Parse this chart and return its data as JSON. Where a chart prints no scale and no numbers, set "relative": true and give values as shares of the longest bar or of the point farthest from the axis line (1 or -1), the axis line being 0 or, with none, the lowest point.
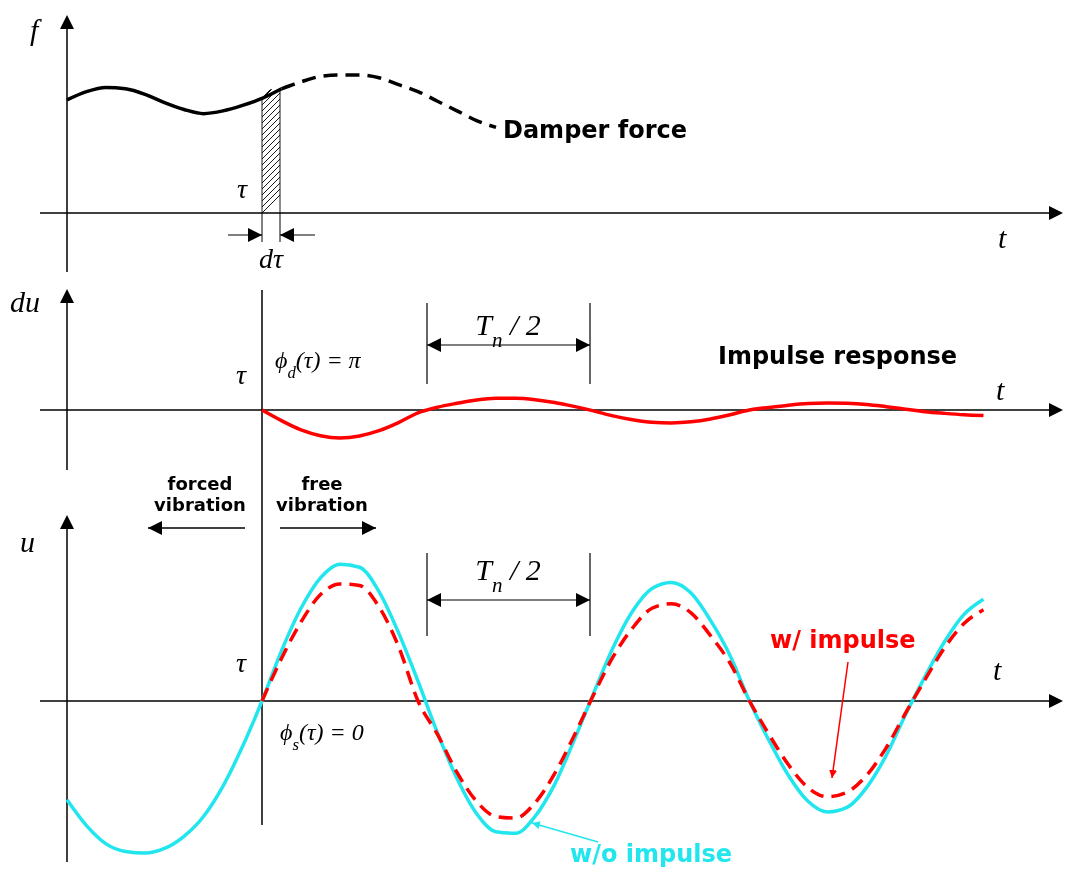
{
  "chart_data": [
    {
      "type": "line",
      "relative": true,
      "xlabel": "t",
      "ylabel": "f",
      "categories": [
        null,
        null,
        null,
        null,
        null,
        null,
        null,
        null,
        null,
        null,
        null,
        null,
        null,
        null,
        null,
        null,
        null,
        null,
        null,
        null,
        null,
        null,
        null,
        null,
        null,
        null,
        null,
        null,
        null,
        null,
        null,
        null,
        null,
        null,
        null,
        null,
        null,
        null,
        null,
        null,
        null,
        null,
        null,
        null,
        null,
        null,
        null,
        null,
        null
      ],
      "series": [
        {
          "color": "#000000",
          "line_style": "solid",
          "values": [
            0.82,
            0.88,
            0.91,
            0.9,
            0.86,
            0.8,
            0.75,
            0.72,
            0.74,
            0.78,
            0.83,
            0.9,
            null,
            null,
            null,
            null,
            null,
            null,
            null,
            null,
            null,
            null,
            null,
            null,
            null,
            null,
            null,
            null,
            null,
            null,
            null,
            null,
            null,
            null,
            null,
            null,
            null,
            null,
            null,
            null,
            null,
            null,
            null,
            null,
            null,
            null,
            null,
            null,
            null
          ]
        },
        {
          "color": "#000000",
          "line_style": "dashed",
          "values": [
            null,
            null,
            null,
            null,
            null,
            null,
            null,
            null,
            null,
            null,
            null,
            0.9,
            0.95,
            0.99,
            1,
            1,
            0.98,
            0.93,
            0.88,
            0.81,
            0.74,
            0.67,
            0.62,
            null,
            null,
            null,
            null,
            null,
            null,
            null,
            null,
            null,
            null,
            null,
            null,
            null,
            null,
            null,
            null,
            null,
            null,
            null,
            null,
            null,
            null,
            null,
            null,
            null,
            null
          ]
        }
      ],
      "annotations": [
        "Damper force",
        "τ",
        "dτ"
      ]
    },
    {
      "type": "line",
      "relative": true,
      "xlabel": "t",
      "ylabel": "du",
      "categories": [
        null,
        null,
        null,
        null,
        null,
        null,
        null,
        null,
        null,
        null,
        null,
        null,
        null,
        null,
        null,
        null,
        null,
        null,
        null,
        null,
        null,
        null,
        null,
        null,
        null,
        null,
        null,
        null,
        null,
        null,
        null,
        null,
        null,
        null,
        null,
        null,
        null,
        null,
        null,
        null,
        null,
        null,
        null,
        null,
        null,
        null,
        null,
        null,
        null
      ],
      "series": [
        {
          "color": "#ff0000",
          "line_style": "solid",
          "values": [
            null,
            null,
            null,
            null,
            null,
            null,
            null,
            null,
            null,
            null,
            0,
            -0.38,
            -0.71,
            -0.92,
            -1,
            -0.93,
            -0.74,
            -0.45,
            -0.1,
            0.1,
            0.24,
            0.36,
            0.42,
            0.42,
            0.37,
            0.27,
            0.13,
            -0.03,
            -0.21,
            -0.35,
            -0.44,
            -0.46,
            -0.42,
            -0.32,
            -0.17,
            0,
            0.09,
            0.17,
            0.23,
            0.25,
            0.24,
            0.2,
            0.12,
            0.03,
            -0.06,
            -0.12,
            -0.17,
            -0.2,
            null
          ]
        }
      ],
      "annotations": [
        "ϕ$_{d}$(τ) = π",
        "T$_{n}$ / 2",
        "Impulse response",
        "τ"
      ]
    },
    {
      "type": "line",
      "relative": true,
      "xlabel": "t",
      "ylabel": "u",
      "categories": [
        null,
        null,
        null,
        null,
        null,
        null,
        null,
        null,
        null,
        null,
        null,
        null,
        null,
        null,
        null,
        null,
        null,
        null,
        null,
        null,
        null,
        null,
        null,
        null,
        null,
        null,
        null,
        null,
        null,
        null,
        null,
        null,
        null,
        null,
        null,
        null,
        null,
        null,
        null,
        null,
        null,
        null,
        null,
        null,
        null,
        null,
        null,
        null,
        null
      ],
      "series": [
        {
          "name": "w/o impulse",
          "color": "#22e6ee",
          "line_style": "solid",
          "values": [
            -0.65,
            -0.82,
            -0.94,
            -0.99,
            -1,
            -0.97,
            -0.89,
            -0.76,
            -0.56,
            -0.3,
            0,
            0.33,
            0.61,
            0.81,
            0.9,
            0.88,
            0.72,
            0.45,
            0.13,
            -0.21,
            -0.51,
            -0.74,
            -0.86,
            -0.87,
            -0.76,
            -0.55,
            -0.26,
            0.05,
            0.35,
            0.59,
            0.74,
            0.78,
            0.71,
            0.53,
            0.3,
            0,
            -0.26,
            -0.49,
            -0.66,
            -0.73,
            -0.7,
            -0.57,
            -0.36,
            -0.09,
            0.16,
            0.39,
            0.57,
            0.67,
            null
          ]
        },
        {
          "name": "w/ impulse",
          "color": "#ff0000",
          "line_style": "dashed",
          "values": [
            null,
            null,
            null,
            null,
            null,
            null,
            null,
            null,
            null,
            null,
            0,
            0.28,
            0.52,
            0.7,
            0.77,
            0.76,
            0.62,
            0.36,
            0,
            -0.22,
            -0.47,
            -0.66,
            -0.76,
            -0.77,
            -0.67,
            -0.48,
            -0.23,
            0.04,
            0.29,
            0.48,
            0.61,
            0.64,
            0.58,
            0.43,
            0.25,
            0,
            -0.22,
            -0.42,
            -0.57,
            -0.63,
            -0.6,
            -0.49,
            -0.31,
            -0.08,
            0.14,
            0.35,
            0.51,
            0.6,
            null
          ]
        }
      ],
      "annotations": [
        "forced vibration",
        "free vibration",
        "T$_{n}$ / 2",
        "ϕ$_{s}$(τ) = 0",
        "τ"
      ]
    }
  ]
}
